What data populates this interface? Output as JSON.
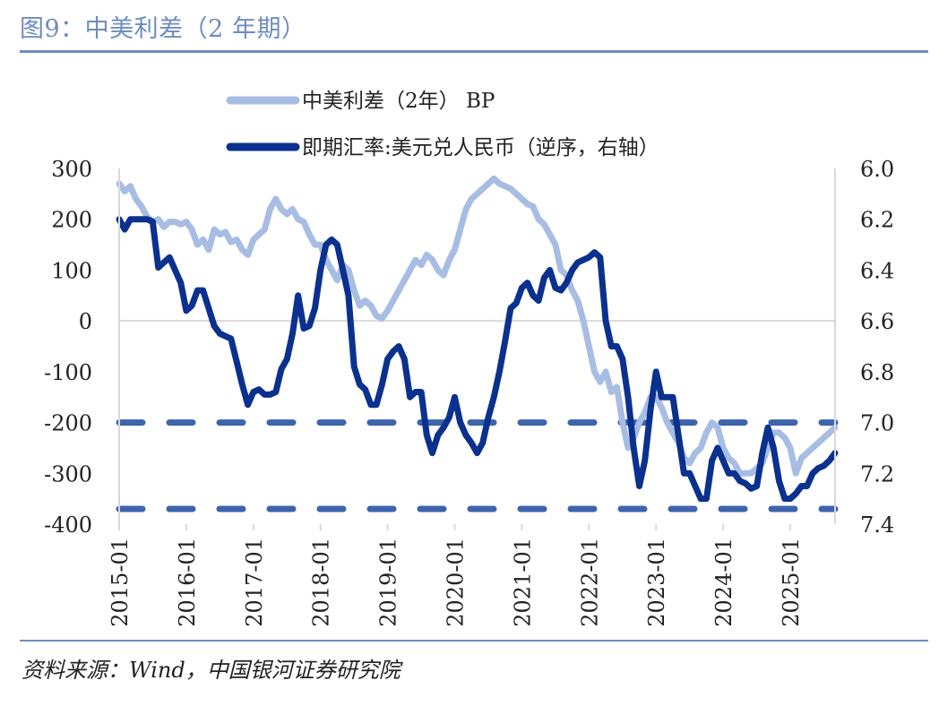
{
  "title": "图9：中美利差（2 年期）",
  "source": "资料来源：Wind，中国银河证券研究院",
  "chart_data": {
    "type": "line",
    "title": "图9：中美利差（2 年期）",
    "x_tick_labels": [
      "2015-01",
      "2016-01",
      "2017-01",
      "2018-01",
      "2019-01",
      "2020-01",
      "2021-01",
      "2022-01",
      "2023-01",
      "2024-01",
      "2025-01"
    ],
    "x_range": [
      "2015-01",
      "2025-09"
    ],
    "left_axis": {
      "range": [
        -400,
        300
      ],
      "ticks": [
        "300",
        "200",
        "100",
        "0",
        "-100",
        "-200",
        "-300",
        "-400"
      ]
    },
    "right_axis": {
      "range": [
        6.0,
        7.4
      ],
      "inverted": true,
      "ticks": [
        "6.0",
        "6.2",
        "6.4",
        "6.6",
        "6.8",
        "7.0",
        "7.2",
        "7.4"
      ]
    },
    "zero_line": true,
    "reference_lines": [
      {
        "axis": "left",
        "value": -200,
        "style": "dashed",
        "color": "#3d64ac"
      },
      {
        "axis": "left",
        "value": -370,
        "style": "dashed",
        "color": "#3d64ac"
      }
    ],
    "legend_placement": "top-center",
    "series": [
      {
        "name": "中美利差（2年） BP",
        "axis": "left",
        "color": "#a8bde3",
        "values": [
          270,
          255,
          265,
          240,
          225,
          205,
          195,
          200,
          185,
          195,
          195,
          190,
          195,
          180,
          150,
          160,
          140,
          180,
          170,
          175,
          155,
          160,
          140,
          130,
          160,
          170,
          180,
          220,
          240,
          220,
          210,
          220,
          200,
          195,
          170,
          150,
          150,
          120,
          100,
          80,
          110,
          100,
          60,
          30,
          40,
          30,
          10,
          5,
          20,
          40,
          60,
          80,
          100,
          120,
          110,
          130,
          120,
          100,
          90,
          120,
          140,
          180,
          220,
          240,
          250,
          260,
          270,
          280,
          270,
          265,
          260,
          250,
          240,
          230,
          225,
          200,
          190,
          170,
          150,
          100,
          90,
          60,
          40,
          0,
          -50,
          -100,
          -120,
          -100,
          -140,
          -130,
          -200,
          -250,
          -230,
          -200,
          -180,
          -150,
          -150,
          -170,
          -200,
          -220,
          -240,
          -270,
          -280,
          -260,
          -250,
          -220,
          -200,
          -210,
          -250,
          -270,
          -280,
          -300,
          -300,
          -300,
          -290,
          -280,
          -250,
          -220,
          -220,
          -230,
          -250,
          -300,
          -270,
          -260,
          -250,
          -240,
          -230,
          -220,
          -210
        ]
      },
      {
        "name": "即期汇率:美元兑人民币（逆序，右轴）",
        "axis": "right",
        "color": "#0b318f",
        "values": [
          6.2,
          6.24,
          6.2,
          6.2,
          6.2,
          6.2,
          6.21,
          6.39,
          6.37,
          6.35,
          6.4,
          6.45,
          6.56,
          6.54,
          6.48,
          6.48,
          6.55,
          6.62,
          6.65,
          6.66,
          6.67,
          6.76,
          6.85,
          6.93,
          6.88,
          6.87,
          6.89,
          6.89,
          6.88,
          6.79,
          6.75,
          6.65,
          6.5,
          6.63,
          6.62,
          6.55,
          6.4,
          6.3,
          6.28,
          6.3,
          6.4,
          6.5,
          6.78,
          6.85,
          6.87,
          6.93,
          6.93,
          6.85,
          6.75,
          6.72,
          6.7,
          6.75,
          6.9,
          6.88,
          6.88,
          7.05,
          7.12,
          7.05,
          7.02,
          6.98,
          6.9,
          7.0,
          7.05,
          7.08,
          7.12,
          7.08,
          6.98,
          6.9,
          6.8,
          6.68,
          6.55,
          6.53,
          6.47,
          6.45,
          6.5,
          6.52,
          6.43,
          6.4,
          6.47,
          6.48,
          6.45,
          6.4,
          6.37,
          6.36,
          6.35,
          6.33,
          6.35,
          6.6,
          6.7,
          6.7,
          6.75,
          6.9,
          7.1,
          7.25,
          7.15,
          6.95,
          6.8,
          6.9,
          6.9,
          6.9,
          7.05,
          7.2,
          7.2,
          7.25,
          7.3,
          7.3,
          7.15,
          7.1,
          7.15,
          7.2,
          7.2,
          7.23,
          7.24,
          7.26,
          7.25,
          7.12,
          7.02,
          7.1,
          7.23,
          7.3,
          7.3,
          7.28,
          7.25,
          7.25,
          7.2,
          7.18,
          7.17,
          7.15,
          7.12
        ]
      }
    ]
  }
}
